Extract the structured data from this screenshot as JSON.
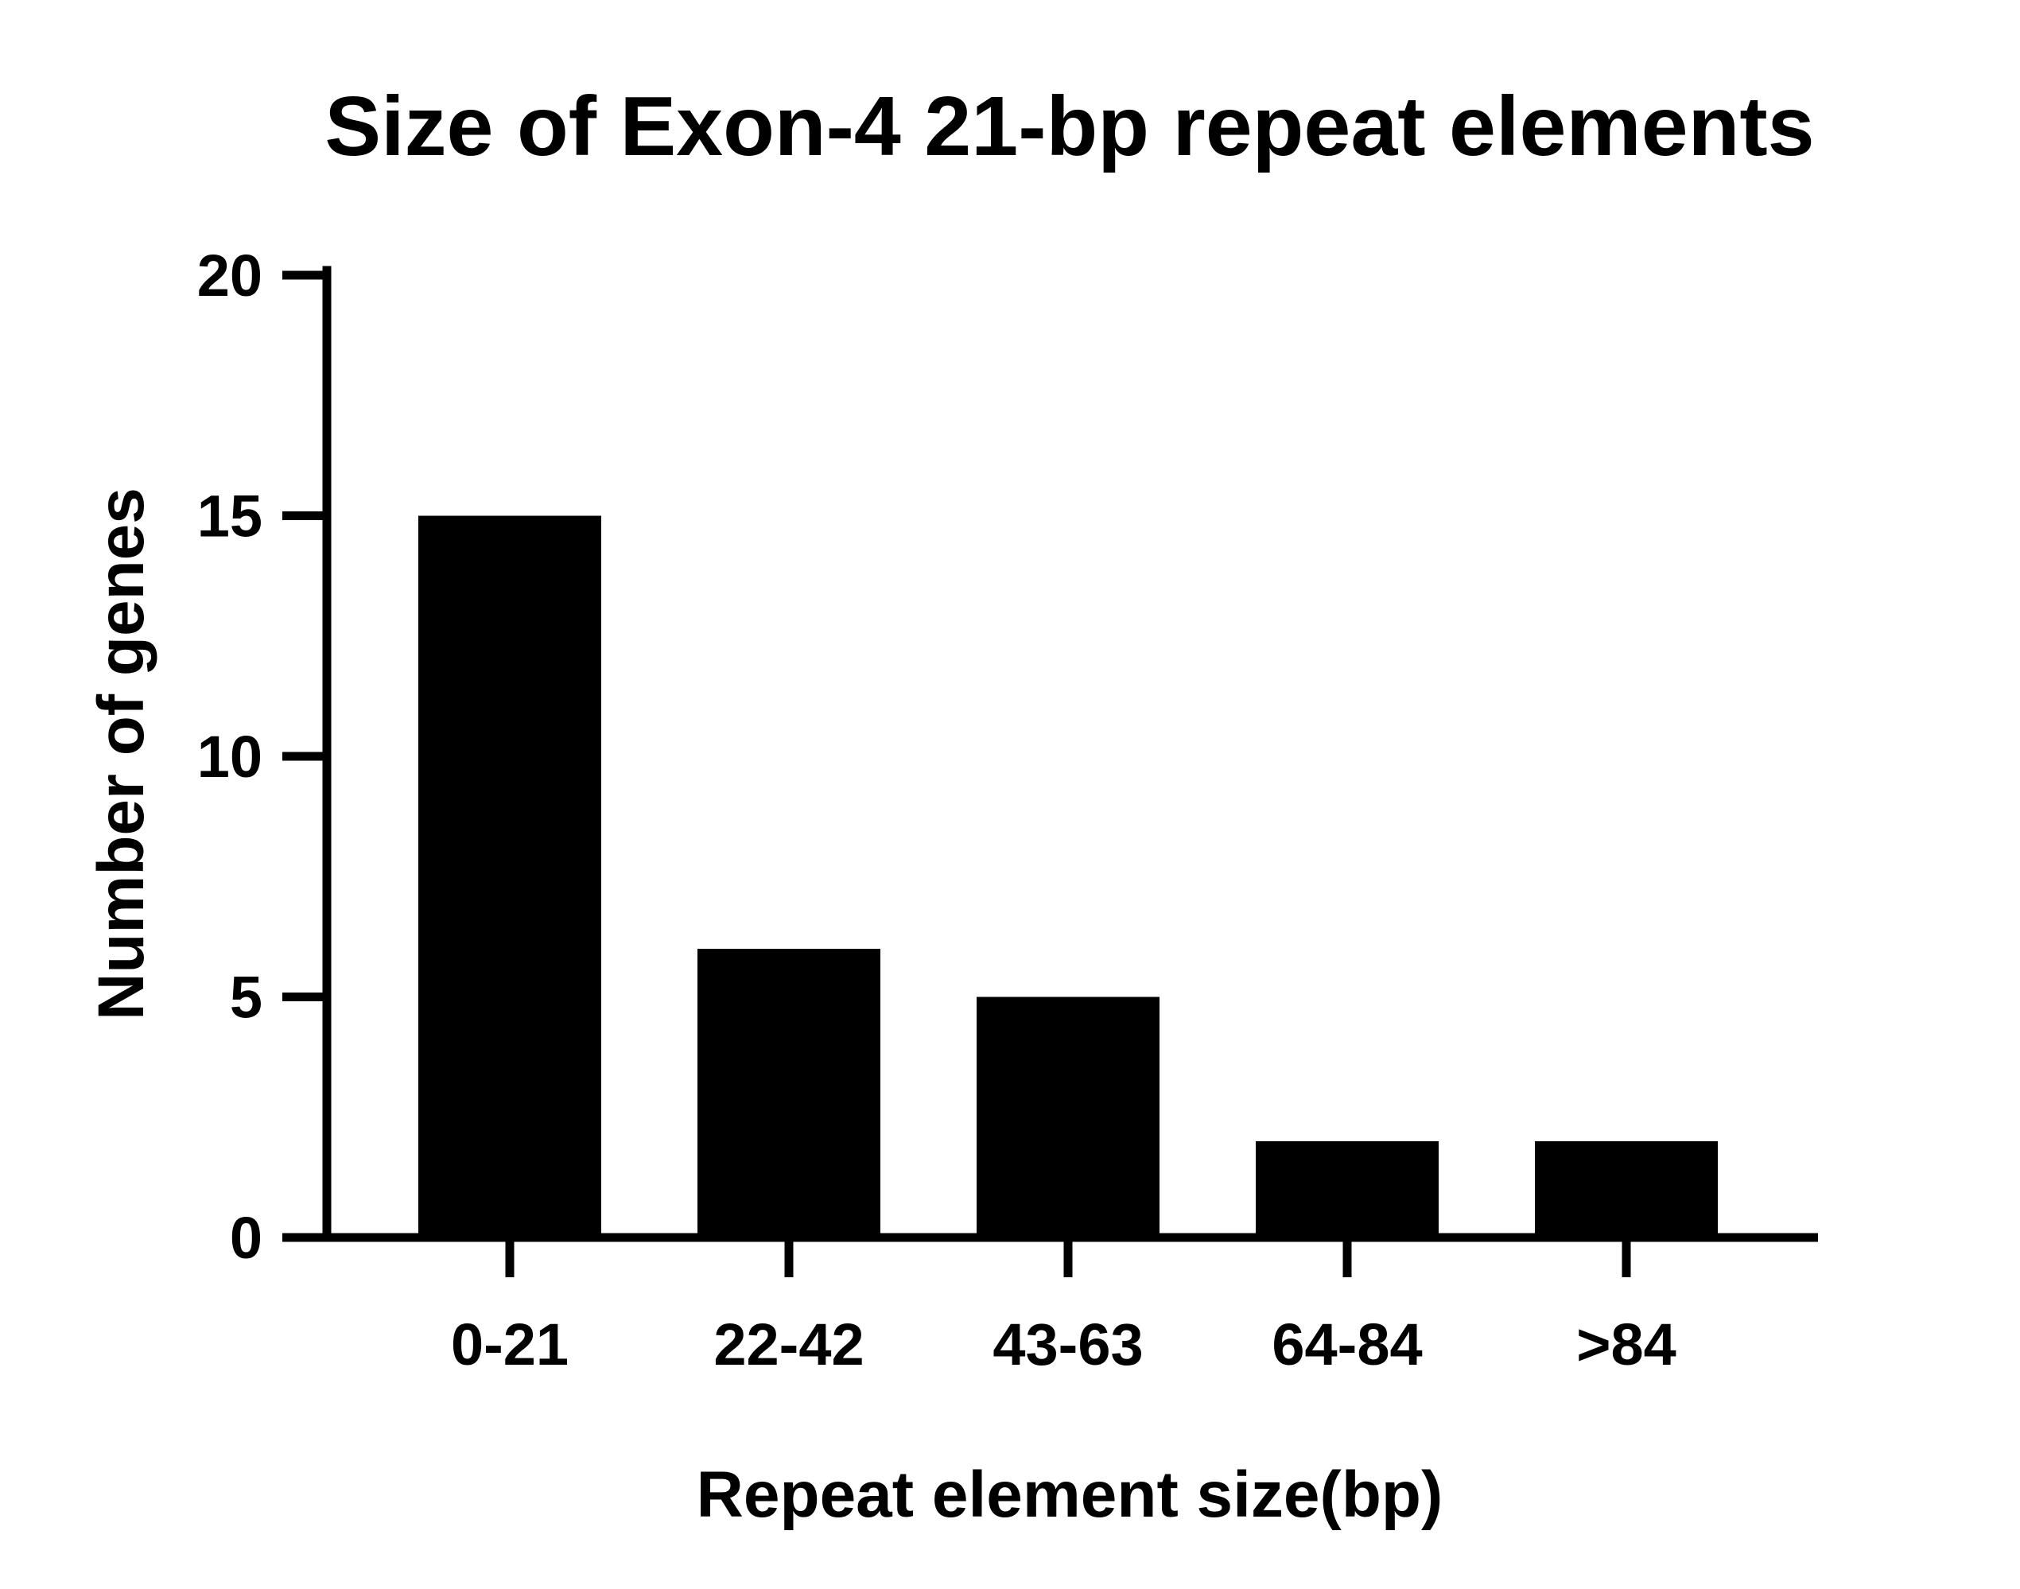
{
  "chart_data": {
    "type": "bar",
    "title": "Size of Exon-4 21-bp repeat elements",
    "xlabel": "Repeat element size(bp)",
    "ylabel": "Number of genes",
    "categories": [
      "0-21",
      "22-42",
      "43-63",
      "64-84",
      ">84"
    ],
    "values": [
      15,
      6,
      5,
      2,
      2
    ],
    "ylim": [
      0,
      20
    ],
    "yticks": [
      "0",
      "5",
      "10",
      "15",
      "20"
    ],
    "grid": false,
    "legend": "none",
    "bar_color": "#000000"
  }
}
